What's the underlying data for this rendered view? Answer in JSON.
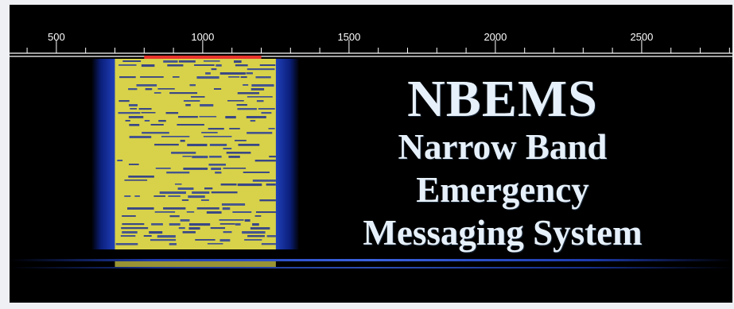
{
  "scale": {
    "ticks": [
      "500",
      "1000",
      "1500",
      "2000",
      "2500"
    ],
    "tick_values": [
      500,
      1000,
      1500,
      2000,
      2500
    ],
    "range": [
      340,
      2810
    ],
    "bandwidth_marker": [
      800,
      1200
    ],
    "marker_color": "#e8342c"
  },
  "waterfall": {
    "signal_color": "#d8d24a",
    "edge_color": "#1f3ea8",
    "background": "#000000"
  },
  "title": "NBEMS",
  "subtitle_lines": [
    "Narrow Band",
    "Emergency",
    "Messaging System"
  ]
}
